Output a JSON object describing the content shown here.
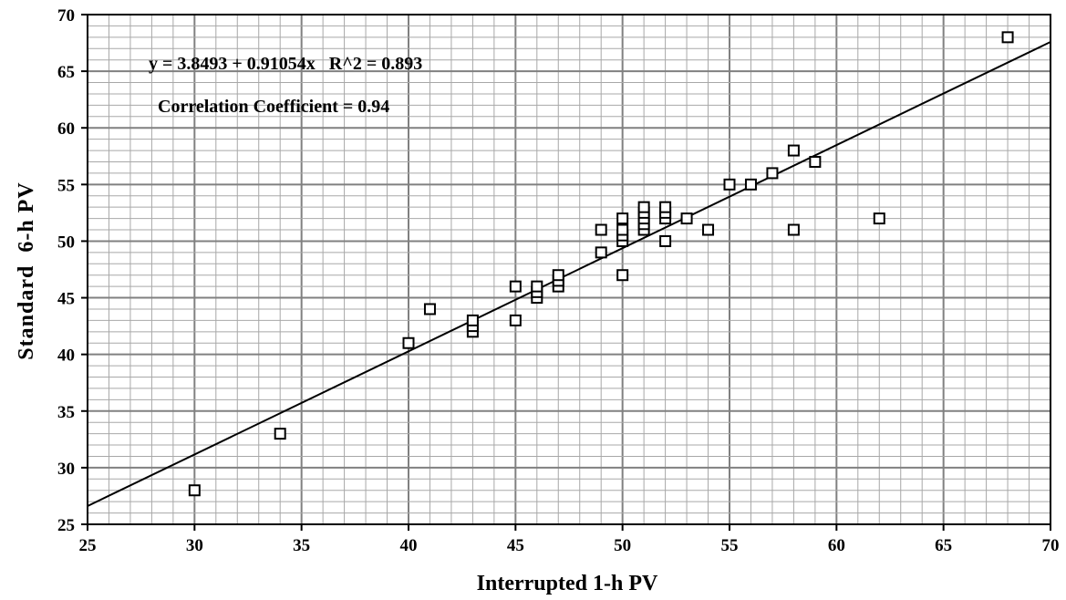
{
  "chart_data": {
    "type": "scatter",
    "title": "",
    "xlabel": "Interrupted 1-h PV",
    "ylabel": "Standard  6-h PV",
    "xlim": [
      25,
      70
    ],
    "ylim": [
      25,
      70
    ],
    "x_ticks": [
      "25",
      "30",
      "35",
      "40",
      "45",
      "50",
      "55",
      "60",
      "65",
      "70"
    ],
    "y_ticks": [
      "25",
      "30",
      "35",
      "40",
      "45",
      "50",
      "55",
      "60",
      "65",
      "70"
    ],
    "grid": true,
    "legend": "none",
    "annotations": [
      "y = 3.8493 + 0.91054x   R^2 = 0.893",
      "Correlation Coefficient = 0.94"
    ],
    "regression": {
      "intercept": 3.8493,
      "slope": 0.91054,
      "r2": 0.893,
      "r": 0.94
    },
    "points": [
      {
        "x": 30,
        "y": 28
      },
      {
        "x": 34,
        "y": 33
      },
      {
        "x": 40,
        "y": 41
      },
      {
        "x": 41,
        "y": 44
      },
      {
        "x": 43,
        "y": 42
      },
      {
        "x": 43,
        "y": 42.5
      },
      {
        "x": 43,
        "y": 43
      },
      {
        "x": 45,
        "y": 43
      },
      {
        "x": 45,
        "y": 46
      },
      {
        "x": 46,
        "y": 45
      },
      {
        "x": 46,
        "y": 45.5
      },
      {
        "x": 46,
        "y": 46
      },
      {
        "x": 47,
        "y": 46
      },
      {
        "x": 47,
        "y": 46.5
      },
      {
        "x": 47,
        "y": 47
      },
      {
        "x": 49,
        "y": 49
      },
      {
        "x": 49,
        "y": 51
      },
      {
        "x": 50,
        "y": 47
      },
      {
        "x": 50,
        "y": 50
      },
      {
        "x": 50,
        "y": 50.5
      },
      {
        "x": 50,
        "y": 51
      },
      {
        "x": 50,
        "y": 52
      },
      {
        "x": 51,
        "y": 51
      },
      {
        "x": 51,
        "y": 51.5
      },
      {
        "x": 51,
        "y": 52
      },
      {
        "x": 51,
        "y": 52.5
      },
      {
        "x": 51,
        "y": 53
      },
      {
        "x": 52,
        "y": 50
      },
      {
        "x": 52,
        "y": 52
      },
      {
        "x": 52,
        "y": 52.5
      },
      {
        "x": 52,
        "y": 53
      },
      {
        "x": 53,
        "y": 52
      },
      {
        "x": 54,
        "y": 51
      },
      {
        "x": 55,
        "y": 55
      },
      {
        "x": 56,
        "y": 55
      },
      {
        "x": 57,
        "y": 56
      },
      {
        "x": 58,
        "y": 51
      },
      {
        "x": 58,
        "y": 58
      },
      {
        "x": 59,
        "y": 57
      },
      {
        "x": 62,
        "y": 52
      },
      {
        "x": 68,
        "y": 68
      }
    ]
  },
  "colors": {
    "background": "#ffffff",
    "major_grid": "#808080",
    "minor_grid": "#a8a8a8",
    "points": "#000000"
  }
}
